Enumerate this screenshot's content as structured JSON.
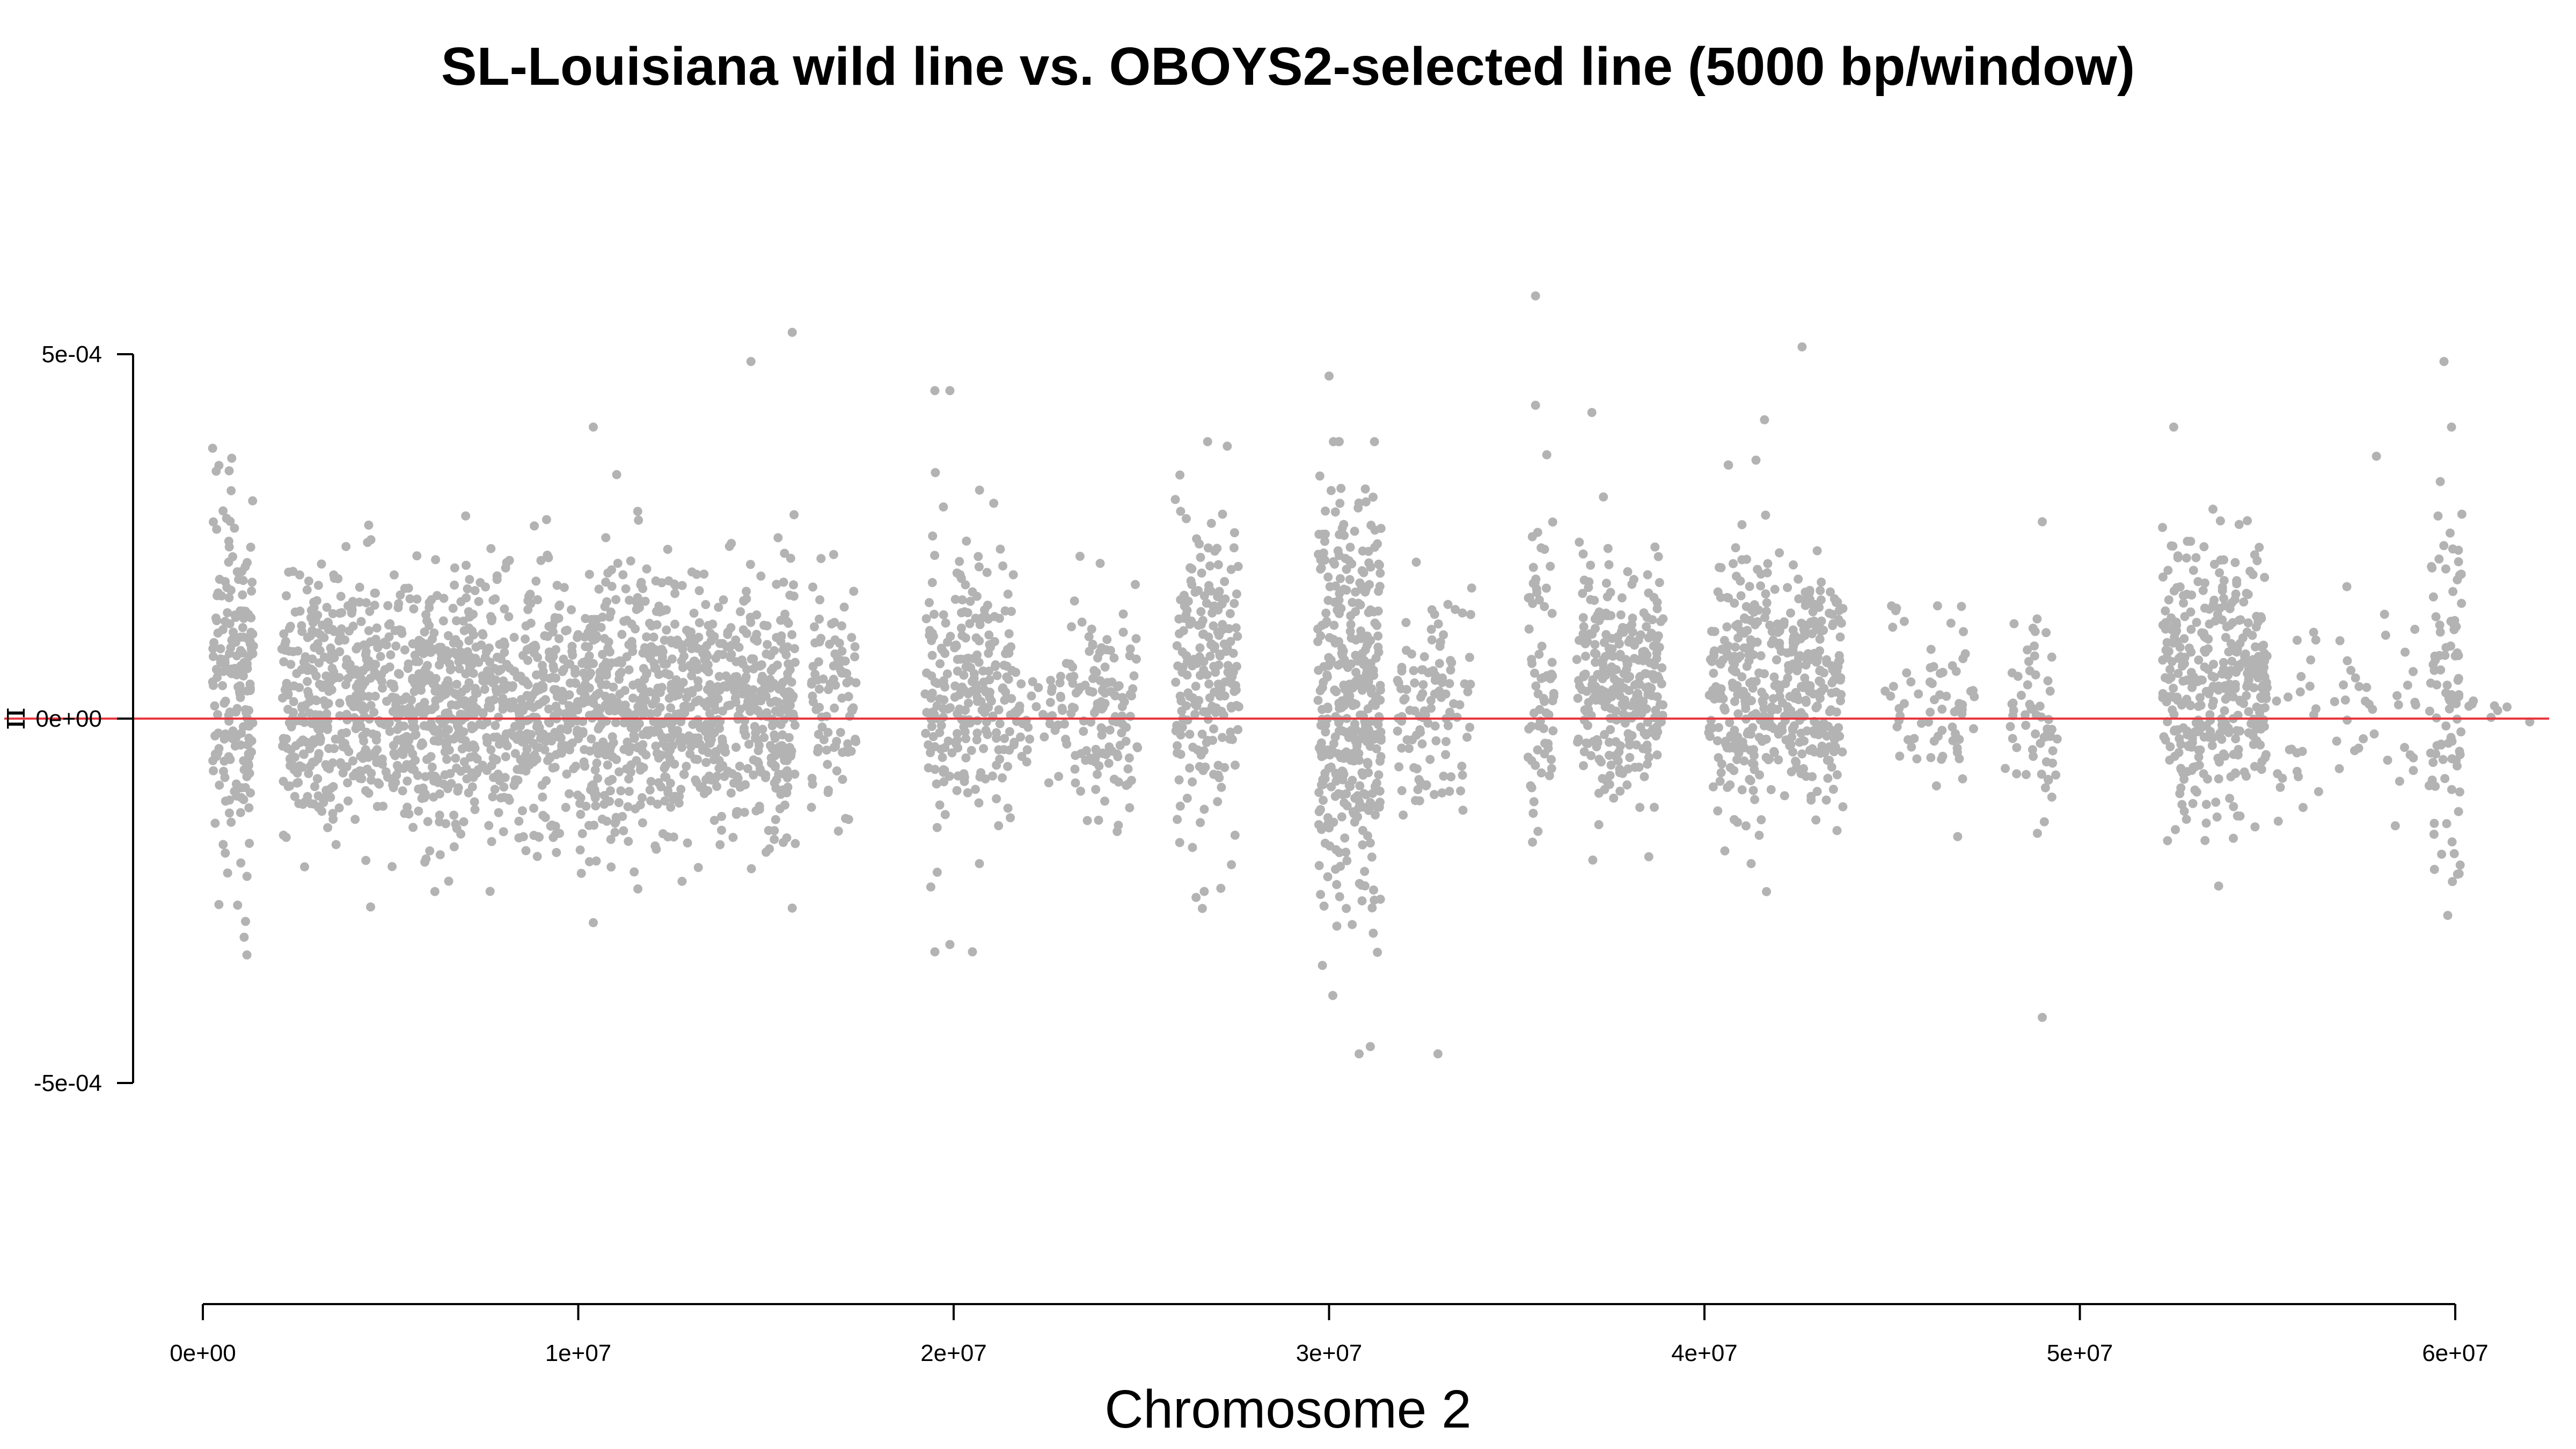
{
  "chart_data": {
    "type": "scatter",
    "title": "SL-Louisiana wild line vs. OBOYS2-selected line (5000 bp/window)",
    "xlabel": "Chromosome 2",
    "ylabel": "π",
    "x_ticks": [
      {
        "value": 0,
        "label": "0e+00"
      },
      {
        "value": 10000000,
        "label": "1e+07"
      },
      {
        "value": 20000000,
        "label": "2e+07"
      },
      {
        "value": 30000000,
        "label": "3e+07"
      },
      {
        "value": 40000000,
        "label": "4e+07"
      },
      {
        "value": 50000000,
        "label": "5e+07"
      },
      {
        "value": 60000000,
        "label": "6e+07"
      }
    ],
    "y_ticks": [
      {
        "value": -0.0005,
        "label": "-5e-04"
      },
      {
        "value": 0,
        "label": "0e+00"
      },
      {
        "value": 0.0005,
        "label": "5e-04"
      }
    ],
    "xlim": [
      -1200000,
      62800000
    ],
    "ylim": [
      -0.00078,
      0.0006
    ],
    "grid": false,
    "legend": "none",
    "colors": {
      "points": "#b3b3b3",
      "reference_line": "#e8373f",
      "axis": "#000000"
    },
    "reference_line": {
      "axis": "y",
      "value": 0
    },
    "clusters": [
      {
        "x_range": [
          250000,
          1350000
        ],
        "mean": 5e-05,
        "sd": 0.00012,
        "n": 190
      },
      {
        "x_range": [
          2100000,
          15800000
        ],
        "mean": 2e-05,
        "sd": 9e-05,
        "n": 1900
      },
      {
        "x_range": [
          16200000,
          17400000
        ],
        "mean": 4e-05,
        "sd": 8e-05,
        "n": 90
      },
      {
        "x_range": [
          19200000,
          21600000
        ],
        "mean": 6e-05,
        "sd": 0.0001,
        "n": 240
      },
      {
        "x_range": [
          21600000,
          23200000
        ],
        "mean": 1e-05,
        "sd": 4e-05,
        "n": 50
      },
      {
        "x_range": [
          23100000,
          24900000
        ],
        "mean": 2e-05,
        "sd": 8e-05,
        "n": 120
      },
      {
        "x_range": [
          25900000,
          27600000
        ],
        "mean": 6e-05,
        "sd": 0.00011,
        "n": 210
      },
      {
        "x_range": [
          29700000,
          31400000
        ],
        "mean": 2e-05,
        "sd": 0.00014,
        "n": 380
      },
      {
        "x_range": [
          31800000,
          33800000
        ],
        "mean": 2e-05,
        "sd": 8e-05,
        "n": 110
      },
      {
        "x_range": [
          35300000,
          36000000
        ],
        "mean": 6e-05,
        "sd": 0.0001,
        "n": 70
      },
      {
        "x_range": [
          36600000,
          38900000
        ],
        "mean": 5e-05,
        "sd": 8e-05,
        "n": 300
      },
      {
        "x_range": [
          40100000,
          43700000
        ],
        "mean": 5e-05,
        "sd": 9e-05,
        "n": 450
      },
      {
        "x_range": [
          44800000,
          47200000
        ],
        "mean": 2e-05,
        "sd": 7e-05,
        "n": 70
      },
      {
        "x_range": [
          48000000,
          49400000
        ],
        "mean": 1e-05,
        "sd": 7e-05,
        "n": 60
      },
      {
        "x_range": [
          52200000,
          55000000
        ],
        "mean": 5e-05,
        "sd": 0.0001,
        "n": 380
      },
      {
        "x_range": [
          55200000,
          59000000
        ],
        "mean": 1e-05,
        "sd": 8e-05,
        "n": 60
      },
      {
        "x_range": [
          59300000,
          60200000
        ],
        "mean": 4e-05,
        "sd": 0.00013,
        "n": 90
      },
      {
        "x_range": [
          60300000,
          62000000
        ],
        "mean": 2e-05,
        "sd": 3e-05,
        "n": 8
      }
    ],
    "outliers": [
      {
        "x": 700000,
        "y": 0.00034
      },
      {
        "x": 1100000,
        "y": -0.0003
      },
      {
        "x": 10400000,
        "y": 0.0004
      },
      {
        "x": 10400000,
        "y": -0.00028
      },
      {
        "x": 14600000,
        "y": 0.00049
      },
      {
        "x": 15700000,
        "y": 0.00053
      },
      {
        "x": 15700000,
        "y": -0.00026
      },
      {
        "x": 19500000,
        "y": 0.00045
      },
      {
        "x": 19500000,
        "y": -0.00032
      },
      {
        "x": 19900000,
        "y": 0.00045
      },
      {
        "x": 19900000,
        "y": -0.00031
      },
      {
        "x": 20500000,
        "y": -0.00032
      },
      {
        "x": 30000000,
        "y": 0.00047
      },
      {
        "x": 30100000,
        "y": -0.00038
      },
      {
        "x": 30800000,
        "y": -0.00046
      },
      {
        "x": 31100000,
        "y": -0.00045
      },
      {
        "x": 32900000,
        "y": -0.00046
      },
      {
        "x": 35500000,
        "y": 0.00058
      },
      {
        "x": 35500000,
        "y": 0.00043
      },
      {
        "x": 37000000,
        "y": 0.00042
      },
      {
        "x": 41600000,
        "y": 0.00041
      },
      {
        "x": 42600000,
        "y": 0.00051
      },
      {
        "x": 49000000,
        "y": -0.00041
      },
      {
        "x": 49000000,
        "y": 0.00027
      },
      {
        "x": 52500000,
        "y": 0.0004
      },
      {
        "x": 57900000,
        "y": 0.00036
      },
      {
        "x": 59700000,
        "y": 0.00049
      },
      {
        "x": 59900000,
        "y": 0.0004
      },
      {
        "x": 59800000,
        "y": -0.00027
      }
    ]
  }
}
